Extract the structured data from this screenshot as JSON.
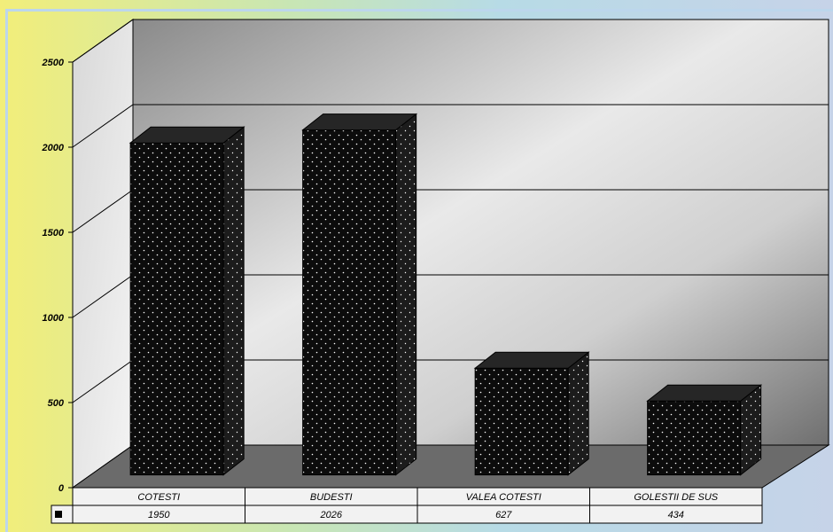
{
  "colors": {
    "bar_front": "#0c0c0c",
    "bar_side": "#1c1c1c",
    "bar_top": "#262626",
    "bar_dots": "#ffffff",
    "floor": "#6b6b6b",
    "grid_line": "#000000",
    "table_background": "#f2f2f2"
  },
  "chart_data": {
    "type": "bar",
    "style": "3d",
    "title": "",
    "xlabel": "",
    "ylabel": "",
    "categories": [
      "COTESTI",
      "BUDESTI",
      "VALEA COTESTI",
      "GOLESTII DE SUS"
    ],
    "series": [
      {
        "values": [
          1950,
          2026,
          627,
          434
        ]
      }
    ],
    "ylim": [
      0,
      2500
    ],
    "y_ticks": [
      "0",
      "500",
      "1000",
      "1500",
      "2000",
      "2500"
    ],
    "grid": true,
    "data_table": true,
    "data_table_values": [
      "1950",
      "2026",
      "627",
      "434"
    ],
    "legend_key_icon": "square-icon"
  }
}
